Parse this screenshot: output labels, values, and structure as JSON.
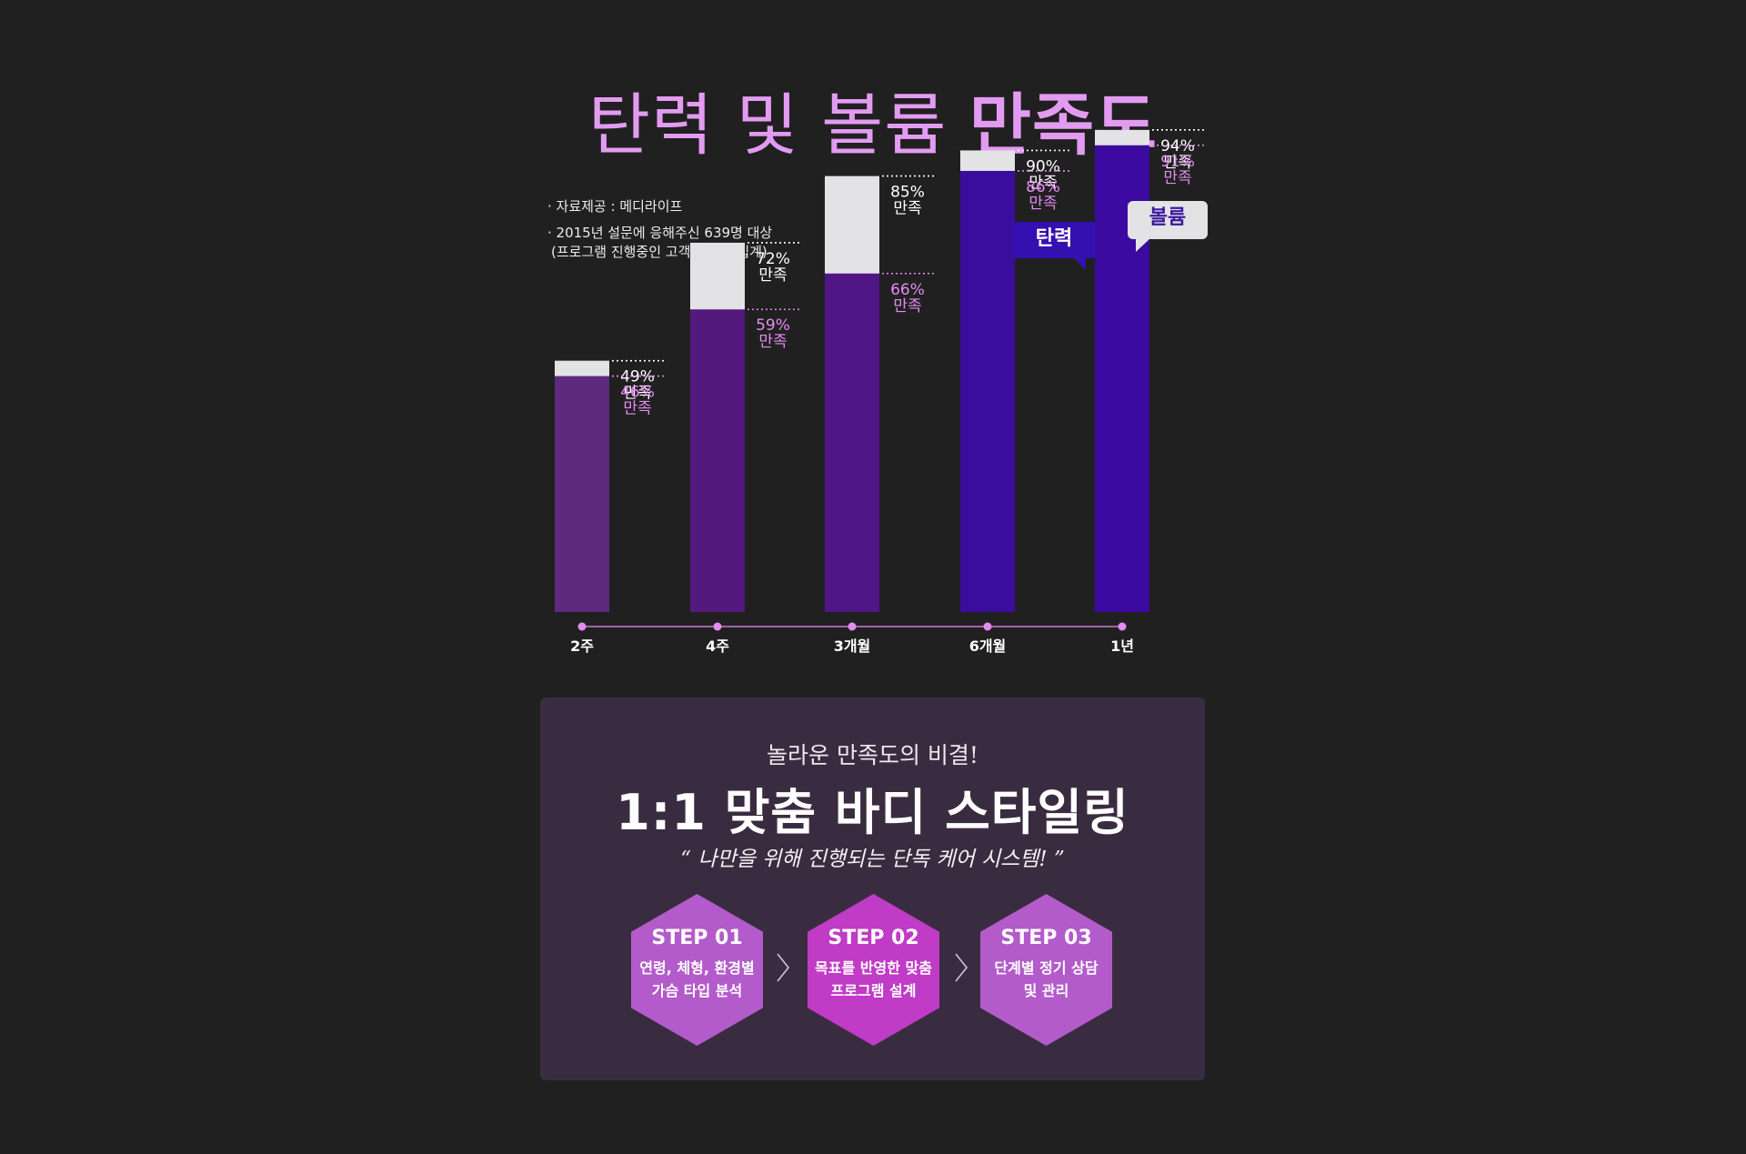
{
  "title": {
    "light": "탄력 및 볼륨",
    "bold": "만족도"
  },
  "notes": [
    "· 자료제공 : 메디라이프",
    "· 2015년 설문에 응해주신 639명 대상",
    "(프로그램 진행중인 고객을 통한 집계)"
  ],
  "legend": {
    "elastic": "탄력",
    "volume": "볼륨"
  },
  "colors": {
    "volume_bar": "#e3e3e5",
    "elastic_bars": [
      "#5e2a7d",
      "#53197c",
      "#501687",
      "#3a0d9d",
      "#3c0aa0"
    ],
    "elastic_label": "#e58bf3",
    "volume_label": "#ffffff",
    "timeline": "#e58bf3"
  },
  "chart_data": {
    "type": "bar",
    "categories": [
      "2주",
      "4주",
      "3개월",
      "6개월",
      "1년"
    ],
    "series": [
      {
        "name": "탄력",
        "values": [
          46,
          59,
          66,
          86,
          91
        ]
      },
      {
        "name": "볼륨",
        "values": [
          49,
          72,
          85,
          90,
          94
        ]
      }
    ],
    "value_suffix": "%",
    "label_word": "만족",
    "title": "탄력 및 볼륨 만족도",
    "xlabel": "",
    "ylabel": "",
    "grid": false,
    "legend_position": "top-right"
  },
  "panel": {
    "subtitle": "놀라운 만족도의 비결!",
    "headline": "1:1 맞춤 바디 스타일링",
    "quote": "“ 나만을 위해 진행되는 단독 케어 시스템! ”",
    "steps": [
      {
        "title": "STEP 01",
        "line1": "연령, 체형, 환경별",
        "line2": "가슴 타입 분석"
      },
      {
        "title": "STEP 02",
        "line1": "목표를 반영한 맞춤",
        "line2": "프로그램 설계"
      },
      {
        "title": "STEP 03",
        "line1": "단계별 정기 상담",
        "line2": "및 관리"
      }
    ]
  }
}
